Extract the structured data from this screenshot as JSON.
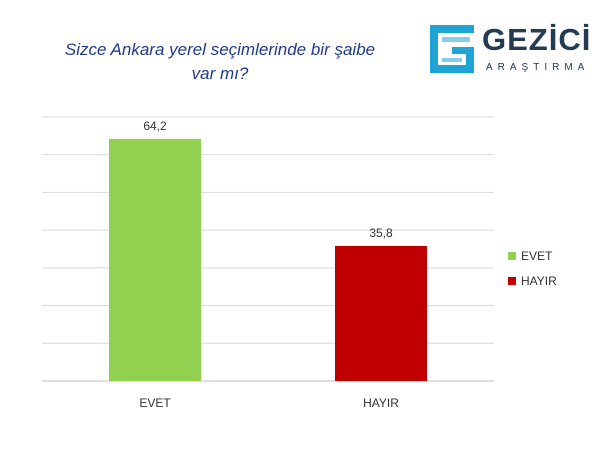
{
  "title_line1": "Sizce Ankara yerel seçimlerinde bir şaibe",
  "title_line2": "var mı?",
  "logo": {
    "name": "GEZİCİ",
    "sub": "ARAŞTIRMA",
    "icon": "gezici-g-logo-icon"
  },
  "colors": {
    "evet": "#92d050",
    "hayir": "#c00000",
    "title": "#1f3a8a",
    "grid": "#d9d9d9",
    "logo": "#243b53"
  },
  "chart_data": {
    "type": "bar",
    "title": "Sizce Ankara yerel seçimlerinde bir şaibe var mı?",
    "categories": [
      "EVET",
      "HAYIR"
    ],
    "values": [
      64.2,
      35.8
    ],
    "value_labels": [
      "64,2",
      "35,8"
    ],
    "ylim": [
      0,
      70
    ],
    "grid": true,
    "legend": {
      "position": "right",
      "entries": [
        "EVET",
        "HAYIR"
      ]
    },
    "xlabel": "",
    "ylabel": ""
  }
}
